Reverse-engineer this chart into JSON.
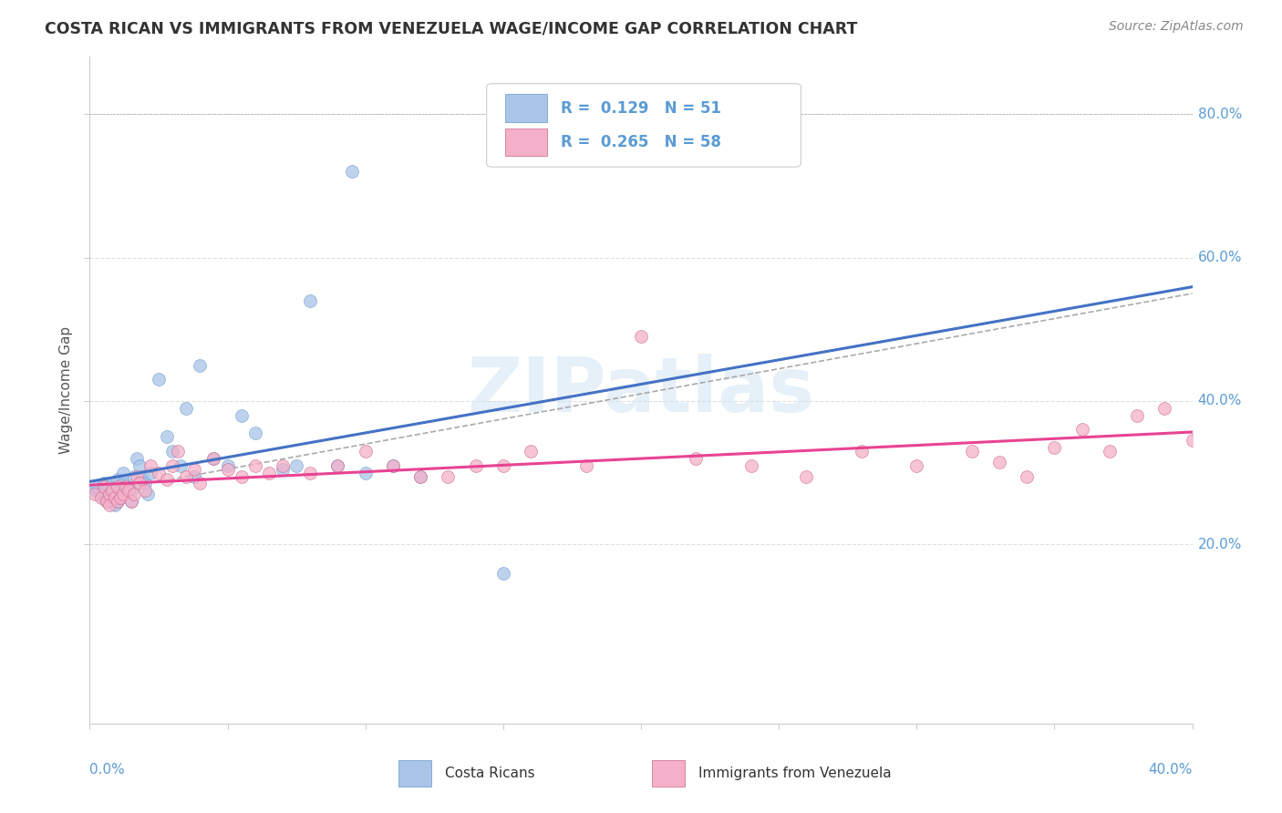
{
  "title": "COSTA RICAN VS IMMIGRANTS FROM VENEZUELA WAGE/INCOME GAP CORRELATION CHART",
  "source": "Source: ZipAtlas.com",
  "ylabel": "Wage/Income Gap",
  "xlim": [
    0.0,
    0.4
  ],
  "ylim": [
    -0.05,
    0.88
  ],
  "right_yticks": [
    0.2,
    0.4,
    0.6,
    0.8
  ],
  "right_yticklabels": [
    "20.0%",
    "40.0%",
    "60.0%",
    "80.0%"
  ],
  "watermark": "ZIPatlas",
  "blue_R": "0.129",
  "blue_N": "51",
  "pink_R": "0.265",
  "pink_N": "58",
  "blue_scatter_x": [
    0.002,
    0.003,
    0.004,
    0.005,
    0.005,
    0.006,
    0.006,
    0.007,
    0.007,
    0.008,
    0.008,
    0.008,
    0.009,
    0.009,
    0.01,
    0.01,
    0.01,
    0.011,
    0.011,
    0.012,
    0.012,
    0.013,
    0.015,
    0.015,
    0.016,
    0.017,
    0.018,
    0.019,
    0.02,
    0.021,
    0.022,
    0.025,
    0.028,
    0.03,
    0.033,
    0.035,
    0.038,
    0.04,
    0.045,
    0.05,
    0.055,
    0.06,
    0.07,
    0.075,
    0.08,
    0.09,
    0.095,
    0.1,
    0.11,
    0.12,
    0.15
  ],
  "blue_scatter_y": [
    0.275,
    0.28,
    0.27,
    0.285,
    0.265,
    0.26,
    0.275,
    0.27,
    0.28,
    0.265,
    0.275,
    0.285,
    0.255,
    0.27,
    0.26,
    0.265,
    0.29,
    0.275,
    0.265,
    0.285,
    0.3,
    0.27,
    0.26,
    0.275,
    0.295,
    0.32,
    0.31,
    0.295,
    0.285,
    0.27,
    0.3,
    0.43,
    0.35,
    0.33,
    0.31,
    0.39,
    0.295,
    0.45,
    0.32,
    0.31,
    0.38,
    0.355,
    0.305,
    0.31,
    0.54,
    0.31,
    0.72,
    0.3,
    0.31,
    0.295,
    0.16
  ],
  "pink_scatter_x": [
    0.002,
    0.004,
    0.005,
    0.006,
    0.007,
    0.007,
    0.008,
    0.009,
    0.01,
    0.01,
    0.011,
    0.012,
    0.013,
    0.014,
    0.015,
    0.016,
    0.017,
    0.018,
    0.02,
    0.022,
    0.025,
    0.028,
    0.03,
    0.032,
    0.035,
    0.038,
    0.04,
    0.045,
    0.05,
    0.055,
    0.06,
    0.065,
    0.07,
    0.08,
    0.09,
    0.1,
    0.11,
    0.12,
    0.13,
    0.14,
    0.15,
    0.16,
    0.18,
    0.2,
    0.22,
    0.24,
    0.26,
    0.28,
    0.3,
    0.32,
    0.33,
    0.34,
    0.35,
    0.36,
    0.37,
    0.38,
    0.39,
    0.4
  ],
  "pink_scatter_y": [
    0.27,
    0.265,
    0.28,
    0.26,
    0.27,
    0.255,
    0.275,
    0.265,
    0.26,
    0.28,
    0.265,
    0.27,
    0.28,
    0.275,
    0.26,
    0.27,
    0.295,
    0.285,
    0.275,
    0.31,
    0.3,
    0.29,
    0.31,
    0.33,
    0.295,
    0.305,
    0.285,
    0.32,
    0.305,
    0.295,
    0.31,
    0.3,
    0.31,
    0.3,
    0.31,
    0.33,
    0.31,
    0.295,
    0.295,
    0.31,
    0.31,
    0.33,
    0.31,
    0.49,
    0.32,
    0.31,
    0.295,
    0.33,
    0.31,
    0.33,
    0.315,
    0.295,
    0.335,
    0.36,
    0.33,
    0.38,
    0.39,
    0.345
  ],
  "blue_line_color": "#4472c4",
  "pink_line_color": "#e84393",
  "dashed_line_color": "#aaaaaa",
  "scatter_blue_face": "#aac4e8",
  "scatter_blue_edge": "#6699cc",
  "scatter_pink_face": "#f4b0c8",
  "scatter_pink_edge": "#cc6688",
  "scatter_alpha": 0.75,
  "scatter_size": 100,
  "background_color": "#ffffff",
  "grid_color": "#e0e0e0",
  "title_color": "#333333",
  "axis_label_color": "#5b9bd5",
  "right_label_color": "#5b9bd5"
}
